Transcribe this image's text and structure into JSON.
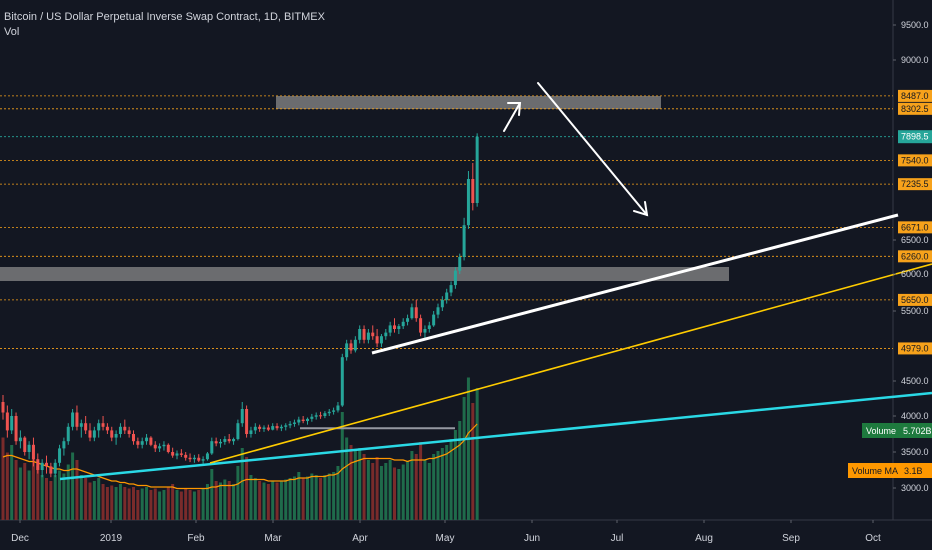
{
  "header": {
    "title": "Bitcoin / US Dollar Perpetual Inverse Swap Contract, 1D, BITMEX",
    "volume_indicator": "Vol"
  },
  "colors": {
    "background": "#131722",
    "axis_text": "#d1d4dc",
    "level_line": "#f7a21b",
    "current_price": "#26a69a",
    "up_candle": "#26a69a",
    "down_candle": "#ef5350",
    "white_trendline": "#ffffff",
    "yellow_trendline": "#ffcc00",
    "cyan_trendline": "#2ad9e6",
    "zone_box": "#8a8a8a",
    "volume_ma": "#ff9800",
    "volume_up": "#1f6b4b",
    "volume_down": "#7a2b2b"
  },
  "chart_data": {
    "type": "candlestick",
    "title": "Bitcoin / US Dollar Perpetual Inverse Swap Contract, 1D, BITMEX",
    "x_ticks": [
      "Dec",
      "2019",
      "Feb",
      "Mar",
      "Apr",
      "May",
      "Jun",
      "Jul",
      "Aug",
      "Sep",
      "Oct"
    ],
    "y_ticks": [
      "9500.0",
      "9000.0",
      "6500.0",
      "6000.0",
      "5500.0",
      "4500.0",
      "4000.0",
      "3500.0",
      "3000.0"
    ],
    "ylim": [
      2600,
      9800
    ],
    "price_levels": [
      "8487.0",
      "8302.5",
      "7540.0",
      "7235.5",
      "6671.0",
      "6260.0",
      "5650.0",
      "4979.0"
    ],
    "current_price": "7898.5",
    "volume_label": "Volume",
    "volume_value": "5.702B",
    "volume_ma_label": "Volume MA",
    "volume_ma_value": "3.1B",
    "candles": [
      [
        4200,
        4300,
        3950,
        4050
      ],
      [
        4050,
        4150,
        3700,
        3800
      ],
      [
        3800,
        4100,
        3750,
        4000
      ],
      [
        4000,
        4050,
        3600,
        3650
      ],
      [
        3650,
        3800,
        3550,
        3700
      ],
      [
        3700,
        3720,
        3450,
        3500
      ],
      [
        3500,
        3650,
        3400,
        3600
      ],
      [
        3600,
        3700,
        3300,
        3400
      ],
      [
        3400,
        3480,
        3200,
        3250
      ],
      [
        3250,
        3400,
        3150,
        3350
      ],
      [
        3350,
        3450,
        3200,
        3300
      ],
      [
        3300,
        3350,
        3150,
        3200
      ],
      [
        3200,
        3400,
        3150,
        3350
      ],
      [
        3350,
        3600,
        3300,
        3550
      ],
      [
        3550,
        3700,
        3450,
        3650
      ],
      [
        3650,
        3900,
        3600,
        3850
      ],
      [
        3850,
        4100,
        3800,
        4050
      ],
      [
        4050,
        4150,
        3800,
        3850
      ],
      [
        3850,
        3950,
        3700,
        3900
      ],
      [
        3900,
        4000,
        3750,
        3800
      ],
      [
        3800,
        3900,
        3650,
        3700
      ],
      [
        3700,
        3850,
        3650,
        3800
      ],
      [
        3800,
        3950,
        3700,
        3900
      ],
      [
        3900,
        4000,
        3800,
        3850
      ],
      [
        3850,
        3900,
        3750,
        3800
      ],
      [
        3800,
        3850,
        3650,
        3700
      ],
      [
        3700,
        3800,
        3600,
        3750
      ],
      [
        3750,
        3900,
        3700,
        3850
      ],
      [
        3850,
        3950,
        3750,
        3800
      ],
      [
        3800,
        3850,
        3700,
        3750
      ],
      [
        3750,
        3800,
        3600,
        3650
      ],
      [
        3650,
        3700,
        3550,
        3600
      ],
      [
        3600,
        3700,
        3550,
        3650
      ],
      [
        3650,
        3750,
        3600,
        3700
      ],
      [
        3700,
        3720,
        3580,
        3600
      ],
      [
        3600,
        3650,
        3500,
        3550
      ],
      [
        3550,
        3620,
        3500,
        3580
      ],
      [
        3580,
        3650,
        3520,
        3600
      ],
      [
        3600,
        3620,
        3480,
        3500
      ],
      [
        3500,
        3560,
        3420,
        3450
      ],
      [
        3450,
        3520,
        3400,
        3480
      ],
      [
        3480,
        3540,
        3430,
        3460
      ],
      [
        3460,
        3500,
        3380,
        3420
      ],
      [
        3420,
        3480,
        3360,
        3400
      ],
      [
        3400,
        3460,
        3350,
        3420
      ],
      [
        3420,
        3470,
        3360,
        3380
      ],
      [
        3380,
        3440,
        3340,
        3400
      ],
      [
        3400,
        3500,
        3380,
        3480
      ],
      [
        3480,
        3700,
        3460,
        3650
      ],
      [
        3650,
        3700,
        3580,
        3620
      ],
      [
        3620,
        3680,
        3560,
        3640
      ],
      [
        3640,
        3720,
        3600,
        3680
      ],
      [
        3680,
        3750,
        3620,
        3650
      ],
      [
        3650,
        3700,
        3600,
        3680
      ],
      [
        3680,
        3950,
        3660,
        3900
      ],
      [
        3900,
        4200,
        3850,
        4100
      ],
      [
        4100,
        4150,
        3700,
        3750
      ],
      [
        3750,
        3850,
        3700,
        3800
      ],
      [
        3800,
        3900,
        3750,
        3850
      ],
      [
        3850,
        3880,
        3780,
        3820
      ],
      [
        3820,
        3870,
        3780,
        3840
      ],
      [
        3840,
        3880,
        3790,
        3810
      ],
      [
        3810,
        3900,
        3800,
        3860
      ],
      [
        3860,
        3900,
        3800,
        3830
      ],
      [
        3830,
        3880,
        3790,
        3850
      ],
      [
        3850,
        3900,
        3800,
        3870
      ],
      [
        3870,
        3930,
        3830,
        3890
      ],
      [
        3890,
        3950,
        3850,
        3910
      ],
      [
        3910,
        3990,
        3870,
        3950
      ],
      [
        3950,
        4000,
        3900,
        3930
      ],
      [
        3930,
        3980,
        3880,
        3960
      ],
      [
        3960,
        4030,
        3920,
        3990
      ],
      [
        3990,
        4050,
        3950,
        4010
      ],
      [
        4010,
        4060,
        3960,
        4000
      ],
      [
        4000,
        4070,
        3970,
        4040
      ],
      [
        4040,
        4100,
        4000,
        4060
      ],
      [
        4060,
        4120,
        4020,
        4080
      ],
      [
        4080,
        4200,
        4050,
        4150
      ],
      [
        4150,
        4900,
        4130,
        4850
      ],
      [
        4850,
        5100,
        4800,
        5050
      ],
      [
        5050,
        5100,
        4900,
        4950
      ],
      [
        4950,
        5150,
        4920,
        5100
      ],
      [
        5100,
        5300,
        5050,
        5250
      ],
      [
        5250,
        5300,
        5050,
        5100
      ],
      [
        5100,
        5250,
        5050,
        5200
      ],
      [
        5200,
        5300,
        5100,
        5150
      ],
      [
        5150,
        5250,
        5000,
        5050
      ],
      [
        5050,
        5180,
        5000,
        5150
      ],
      [
        5150,
        5250,
        5100,
        5200
      ],
      [
        5200,
        5350,
        5150,
        5300
      ],
      [
        5300,
        5400,
        5200,
        5250
      ],
      [
        5250,
        5320,
        5180,
        5290
      ],
      [
        5290,
        5400,
        5250,
        5350
      ],
      [
        5350,
        5450,
        5300,
        5400
      ],
      [
        5400,
        5600,
        5380,
        5550
      ],
      [
        5550,
        5650,
        5350,
        5400
      ],
      [
        5400,
        5450,
        5150,
        5200
      ],
      [
        5200,
        5300,
        5100,
        5250
      ],
      [
        5250,
        5350,
        5200,
        5300
      ],
      [
        5300,
        5500,
        5280,
        5450
      ],
      [
        5450,
        5600,
        5400,
        5550
      ],
      [
        5550,
        5700,
        5500,
        5650
      ],
      [
        5650,
        5800,
        5600,
        5750
      ],
      [
        5750,
        5900,
        5700,
        5850
      ],
      [
        5850,
        6100,
        5800,
        6050
      ],
      [
        6050,
        6300,
        6000,
        6250
      ],
      [
        6250,
        6800,
        6200,
        6700
      ],
      [
        6700,
        7400,
        6650,
        7300
      ],
      [
        7300,
        7500,
        6900,
        7000
      ],
      [
        7000,
        7950,
        6950,
        7898
      ]
    ],
    "volumes": [
      [
        0.55,
        0
      ],
      [
        0.45,
        0
      ],
      [
        0.5,
        1
      ],
      [
        0.4,
        0
      ],
      [
        0.35,
        1
      ],
      [
        0.38,
        0
      ],
      [
        0.33,
        1
      ],
      [
        0.42,
        0
      ],
      [
        0.36,
        0
      ],
      [
        0.3,
        1
      ],
      [
        0.28,
        0
      ],
      [
        0.26,
        0
      ],
      [
        0.3,
        1
      ],
      [
        0.33,
        1
      ],
      [
        0.31,
        1
      ],
      [
        0.37,
        1
      ],
      [
        0.45,
        1
      ],
      [
        0.4,
        0
      ],
      [
        0.3,
        1
      ],
      [
        0.28,
        0
      ],
      [
        0.25,
        0
      ],
      [
        0.26,
        1
      ],
      [
        0.28,
        1
      ],
      [
        0.24,
        0
      ],
      [
        0.22,
        0
      ],
      [
        0.23,
        0
      ],
      [
        0.22,
        1
      ],
      [
        0.24,
        1
      ],
      [
        0.22,
        0
      ],
      [
        0.21,
        0
      ],
      [
        0.22,
        0
      ],
      [
        0.2,
        0
      ],
      [
        0.21,
        1
      ],
      [
        0.22,
        1
      ],
      [
        0.2,
        0
      ],
      [
        0.21,
        0
      ],
      [
        0.19,
        1
      ],
      [
        0.2,
        1
      ],
      [
        0.22,
        0
      ],
      [
        0.24,
        0
      ],
      [
        0.2,
        1
      ],
      [
        0.19,
        0
      ],
      [
        0.21,
        0
      ],
      [
        0.2,
        0
      ],
      [
        0.19,
        1
      ],
      [
        0.2,
        0
      ],
      [
        0.21,
        1
      ],
      [
        0.24,
        1
      ],
      [
        0.34,
        1
      ],
      [
        0.26,
        0
      ],
      [
        0.25,
        1
      ],
      [
        0.27,
        1
      ],
      [
        0.26,
        0
      ],
      [
        0.24,
        1
      ],
      [
        0.36,
        1
      ],
      [
        0.48,
        1
      ],
      [
        0.42,
        0
      ],
      [
        0.3,
        1
      ],
      [
        0.28,
        1
      ],
      [
        0.26,
        0
      ],
      [
        0.25,
        1
      ],
      [
        0.24,
        0
      ],
      [
        0.26,
        1
      ],
      [
        0.25,
        0
      ],
      [
        0.26,
        1
      ],
      [
        0.27,
        1
      ],
      [
        0.28,
        1
      ],
      [
        0.29,
        1
      ],
      [
        0.32,
        1
      ],
      [
        0.28,
        0
      ],
      [
        0.29,
        1
      ],
      [
        0.31,
        1
      ],
      [
        0.3,
        1
      ],
      [
        0.28,
        0
      ],
      [
        0.3,
        1
      ],
      [
        0.31,
        1
      ],
      [
        0.32,
        1
      ],
      [
        0.36,
        1
      ],
      [
        0.72,
        1
      ],
      [
        0.55,
        1
      ],
      [
        0.5,
        0
      ],
      [
        0.46,
        1
      ],
      [
        0.48,
        1
      ],
      [
        0.44,
        0
      ],
      [
        0.4,
        1
      ],
      [
        0.38,
        0
      ],
      [
        0.42,
        0
      ],
      [
        0.36,
        1
      ],
      [
        0.38,
        1
      ],
      [
        0.4,
        1
      ],
      [
        0.35,
        0
      ],
      [
        0.34,
        1
      ],
      [
        0.37,
        1
      ],
      [
        0.39,
        1
      ],
      [
        0.46,
        1
      ],
      [
        0.44,
        0
      ],
      [
        0.52,
        0
      ],
      [
        0.4,
        1
      ],
      [
        0.38,
        1
      ],
      [
        0.44,
        1
      ],
      [
        0.46,
        1
      ],
      [
        0.48,
        1
      ],
      [
        0.5,
        1
      ],
      [
        0.54,
        1
      ],
      [
        0.6,
        1
      ],
      [
        0.66,
        1
      ],
      [
        0.82,
        1
      ],
      [
        0.95,
        1
      ],
      [
        0.78,
        0
      ],
      [
        0.88,
        1
      ]
    ],
    "volume_ma": [
      0.42,
      0.43,
      0.43,
      0.42,
      0.41,
      0.4,
      0.39,
      0.39,
      0.38,
      0.37,
      0.36,
      0.35,
      0.34,
      0.34,
      0.33,
      0.33,
      0.34,
      0.34,
      0.33,
      0.32,
      0.31,
      0.3,
      0.29,
      0.28,
      0.27,
      0.26,
      0.26,
      0.25,
      0.25,
      0.24,
      0.24,
      0.23,
      0.23,
      0.23,
      0.22,
      0.22,
      0.22,
      0.22,
      0.22,
      0.22,
      0.21,
      0.21,
      0.21,
      0.21,
      0.21,
      0.21,
      0.21,
      0.21,
      0.22,
      0.22,
      0.23,
      0.23,
      0.23,
      0.23,
      0.24,
      0.26,
      0.27,
      0.27,
      0.27,
      0.27,
      0.27,
      0.26,
      0.26,
      0.26,
      0.26,
      0.26,
      0.27,
      0.27,
      0.28,
      0.28,
      0.28,
      0.29,
      0.29,
      0.29,
      0.29,
      0.3,
      0.3,
      0.31,
      0.34,
      0.36,
      0.38,
      0.39,
      0.4,
      0.41,
      0.41,
      0.41,
      0.41,
      0.41,
      0.41,
      0.41,
      0.4,
      0.4,
      0.4,
      0.39,
      0.4,
      0.4,
      0.4,
      0.4,
      0.41,
      0.41,
      0.42,
      0.43,
      0.44,
      0.46,
      0.48,
      0.5,
      0.53,
      0.58,
      0.61,
      0.64
    ]
  }
}
